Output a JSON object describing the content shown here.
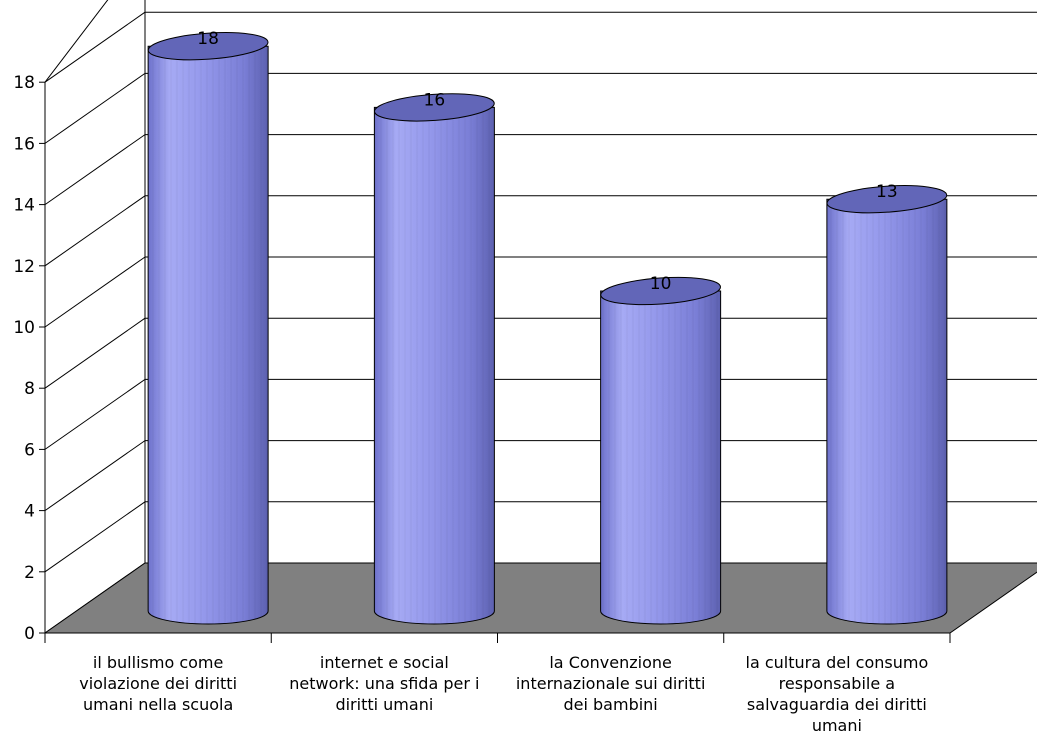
{
  "chart_data": {
    "type": "bar",
    "style": "3d-cylinder",
    "categories": [
      [
        "il bullismo come",
        "violazione dei diritti",
        "umani nella scuola"
      ],
      [
        "internet e social",
        "network: una sfida per i",
        "diritti umani"
      ],
      [
        "la Convenzione",
        "internazionale sui diritti",
        "dei bambini"
      ],
      [
        "la cultura del consumo",
        "responsabile a",
        "salvaguardia dei diritti",
        "umani"
      ]
    ],
    "values": [
      18,
      16,
      10,
      13
    ],
    "data_labels": [
      "18",
      "16",
      "10",
      "13"
    ],
    "ylim": [
      0,
      18
    ],
    "yticks": [
      "0",
      "2",
      "4",
      "6",
      "8",
      "10",
      "12",
      "14",
      "16",
      "18"
    ],
    "grid": true,
    "legend": "none",
    "colors": {
      "bar_light": "#a6aaf4",
      "bar_mid": "#8b8fe6",
      "bar_dark": "#6266b8",
      "floor": "#808080",
      "grid": "#000000"
    }
  }
}
